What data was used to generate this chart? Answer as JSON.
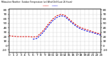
{
  "title": "Milwaukee Weather  Outdoor Temperature (vs) Wind Chill (Last 24 Hours)",
  "bg_color": "#ffffff",
  "plot_bg": "#ffffff",
  "x_ticks": [
    0,
    1,
    2,
    3,
    4,
    5,
    6,
    7,
    8,
    9,
    10,
    11,
    12,
    13,
    14,
    15,
    16,
    17,
    18,
    19,
    20,
    21,
    22,
    23
  ],
  "y_ticks": [
    -10,
    0,
    10,
    20,
    30,
    40,
    50,
    60,
    70,
    80
  ],
  "ylim": [
    -15,
    82
  ],
  "xlim": [
    0,
    23
  ],
  "temp_color": "#dd0000",
  "chill_color": "#0000dd",
  "temp_x": [
    0,
    1,
    2,
    3,
    4,
    5,
    6,
    7,
    8,
    9,
    10,
    11,
    12,
    13,
    14,
    15,
    16,
    17,
    18,
    19,
    20,
    21,
    22,
    23
  ],
  "temp_y": [
    22,
    21,
    20,
    20,
    20,
    20,
    19,
    20,
    28,
    38,
    50,
    60,
    67,
    70,
    68,
    60,
    52,
    45,
    40,
    37,
    34,
    31,
    28,
    26
  ],
  "chill_x": [
    6,
    7,
    8,
    9,
    10,
    11,
    12,
    13,
    14,
    15,
    16,
    17,
    18,
    19,
    20,
    21,
    22,
    23
  ],
  "chill_y": [
    14,
    16,
    24,
    34,
    46,
    56,
    63,
    67,
    65,
    57,
    49,
    42,
    37,
    34,
    31,
    29,
    26,
    23
  ],
  "grid_color": "#aaaaaa",
  "tick_fontsize": 3.2,
  "right_y_labels": [
    "-10",
    "0",
    "10",
    "20",
    "30",
    "40",
    "50",
    "60",
    "70",
    "80"
  ],
  "left_y_labels": [
    "-10",
    "0",
    "10",
    "20",
    "30",
    "40",
    "50",
    "60",
    "70",
    "80"
  ]
}
